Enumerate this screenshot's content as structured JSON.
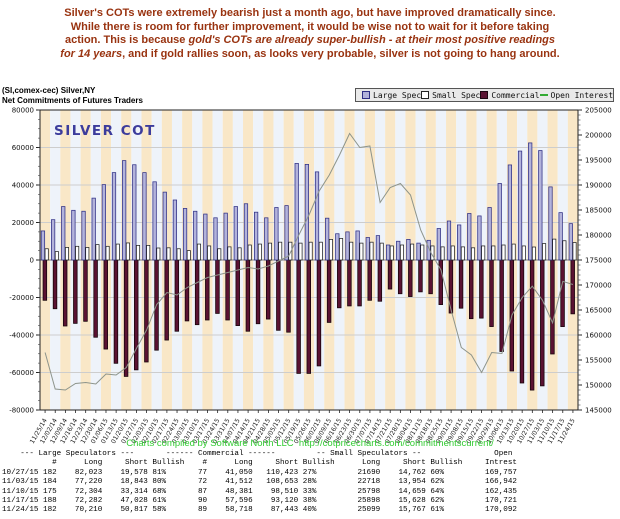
{
  "intro": {
    "color": "#993310",
    "lines": [
      [
        {
          "t": "Silver's COTs were extremely bearish just a month ago, but have improved dramatically since.",
          "i": false
        }
      ],
      [
        {
          "t": "While there is room for further improvement, it would be wise not to wait for it before taking",
          "i": false
        }
      ],
      [
        {
          "t": "action. This is because ",
          "i": false
        },
        {
          "t": "gold's COTs are already super-bullish - at their most positive readings",
          "i": true
        }
      ],
      [
        {
          "t": "for 14 years",
          "i": true
        },
        {
          "t": ", and if gold rallies soon, as looks very probable, silver is not going to hang around.",
          "i": false
        }
      ]
    ]
  },
  "chart_header": {
    "line1": "(SI,comex-cec) Silver,NY",
    "line2": "Net Commitments of Futures Traders"
  },
  "legend": {
    "items": [
      {
        "label": "Large Spec",
        "marker": "square",
        "fill": "#b3b3db",
        "border": "#2f2f85"
      },
      {
        "label": "Small Spec",
        "marker": "square",
        "fill": "#ffffff",
        "border": "#222222"
      },
      {
        "label": "Commercial",
        "marker": "square",
        "fill": "#5a1232",
        "border": "#1a0510"
      },
      {
        "label": "Open Interest",
        "marker": "dash",
        "fill": "#33aa33",
        "border": "#33aa33"
      }
    ]
  },
  "chart_data": {
    "type": "bar",
    "title": "SILVER COT",
    "watermark_color": "#3c3c9c",
    "grid_color": "#cdcdcd",
    "zero_line_color": "#808080",
    "frame_color": "#222222",
    "stripe_even": "#f9e7c7",
    "stripe_odd": "#eef3fa",
    "left_axis": {
      "min": -80000,
      "max": 80000,
      "step": 20000,
      "minor_step": 5000
    },
    "right_axis": {
      "min": 145000,
      "max": 205000,
      "step": 5000,
      "minor_step": 1000
    },
    "x": [
      "11/25/14",
      "12/02/14",
      "12/09/14",
      "12/16/14",
      "12/23/14",
      "12/30/14",
      "01/06/15",
      "01/13/15",
      "01/20/15",
      "01/27/15",
      "02/03/15",
      "02/10/15",
      "02/17/15",
      "02/24/15",
      "03/03/15",
      "03/10/15",
      "03/17/15",
      "03/24/15",
      "03/31/15",
      "04/07/15",
      "04/14/15",
      "04/21/15",
      "04/28/15",
      "05/05/15",
      "05/12/15",
      "05/19/15",
      "05/26/15",
      "06/02/15",
      "06/09/15",
      "06/16/15",
      "06/23/15",
      "06/30/15",
      "07/07/15",
      "07/14/15",
      "07/21/15",
      "07/28/15",
      "08/04/15",
      "08/11/15",
      "08/18/15",
      "08/25/15",
      "09/01/15",
      "09/08/15",
      "09/15/15",
      "09/22/15",
      "09/29/15",
      "10/06/15",
      "10/13/15",
      "10/20/15",
      "10/27/15",
      "11/03/15",
      "11/10/15",
      "11/17/15",
      "11/24/15"
    ],
    "series": [
      {
        "name": "Large Spec",
        "kind": "bar",
        "axis": "left",
        "color": "#b3b3db",
        "border": "#2f2f85",
        "values": [
          15500,
          21500,
          28500,
          26500,
          26000,
          33000,
          40200,
          46600,
          53000,
          50800,
          46600,
          41700,
          36200,
          32000,
          27500,
          26000,
          24500,
          22500,
          25000,
          28500,
          30000,
          25500,
          22500,
          28000,
          29000,
          51500,
          51000,
          47000,
          22300,
          14000,
          15000,
          15500,
          12000,
          13000,
          8000,
          10000,
          11000,
          9000,
          10500,
          16800,
          20800,
          18700,
          24800,
          23500,
          28000,
          40800,
          50700,
          58100,
          62445,
          58377,
          38990,
          25254,
          19393
        ]
      },
      {
        "name": "Small Spec",
        "kind": "bar",
        "axis": "left",
        "color": "#ffffff",
        "border": "#222222",
        "values": [
          6000,
          4500,
          6700,
          7300,
          6700,
          8200,
          7300,
          8500,
          9100,
          7800,
          7800,
          6400,
          6500,
          6000,
          5000,
          8500,
          7500,
          6000,
          7000,
          6500,
          8000,
          8500,
          9000,
          9500,
          9500,
          9000,
          9500,
          9500,
          11000,
          11500,
          9500,
          9000,
          9500,
          9000,
          7500,
          8000,
          8500,
          8000,
          7500,
          7000,
          7500,
          7000,
          6500,
          7500,
          7500,
          8000,
          8500,
          7500,
          6928,
          8764,
          11139,
          10270,
          9332
        ]
      },
      {
        "name": "Commercial",
        "kind": "bar",
        "axis": "left",
        "color": "#5a1232",
        "border": "#140309",
        "values": [
          -21500,
          -26000,
          -35200,
          -33800,
          -32700,
          -41200,
          -47500,
          -55100,
          -62100,
          -58600,
          -54400,
          -48100,
          -42700,
          -38000,
          -32500,
          -34500,
          -32000,
          -28500,
          -32000,
          -35000,
          -38000,
          -34000,
          -31500,
          -37500,
          -38500,
          -60500,
          -60500,
          -56500,
          -33300,
          -25500,
          -24500,
          -24500,
          -21500,
          -22000,
          -15500,
          -18000,
          -19500,
          -17000,
          -18000,
          -23800,
          -28300,
          -25700,
          -31300,
          -31000,
          -35500,
          -48800,
          -59200,
          -65600,
          -69373,
          -67141,
          -50129,
          -35524,
          -28725
        ]
      },
      {
        "name": "Open Interest",
        "kind": "line",
        "axis": "right",
        "color": "#8d948b",
        "values": [
          156500,
          149200,
          149000,
          150300,
          150500,
          150200,
          152200,
          152000,
          153500,
          157300,
          161000,
          166100,
          168500,
          168000,
          169500,
          170500,
          171500,
          172000,
          172500,
          173000,
          173500,
          173200,
          173800,
          174800,
          175800,
          180000,
          184000,
          188800,
          192000,
          196000,
          200300,
          197500,
          197800,
          186500,
          189500,
          190300,
          188000,
          181000,
          176500,
          173000,
          165000,
          157500,
          156000,
          152500,
          156500,
          156300,
          164000,
          167500,
          169757,
          166942,
          162435,
          170721,
          170092
        ]
      }
    ]
  },
  "caption": {
    "text": "Charts compiled by Software North LLC",
    "url": "http://cotpricecharts.com/commitmentscurrent/",
    "color": "#33cc33"
  },
  "table": {
    "group_headers": [
      "--- Large Speculators ---",
      "------ Commercial ------",
      "-- Small Speculators --",
      "Open"
    ],
    "col_headers": [
      "#",
      "Long",
      "Short",
      "Bullish",
      "#",
      "Long",
      "Short",
      "Bullish",
      "Long",
      "Short",
      "Bullish",
      "Intrest"
    ],
    "rows": [
      {
        "date": "10/27/15",
        "ls": [
          "182",
          "82,023",
          "19,578",
          "81%"
        ],
        "c": [
          "77",
          "41,050",
          "110,423",
          "27%"
        ],
        "ss": [
          "21690",
          "14,762",
          "60%"
        ],
        "oi": "169,757"
      },
      {
        "date": "11/03/15",
        "ls": [
          "184",
          "77,220",
          "18,843",
          "80%"
        ],
        "c": [
          "72",
          "41,512",
          "108,653",
          "28%"
        ],
        "ss": [
          "22718",
          "13,954",
          "62%"
        ],
        "oi": "166,942"
      },
      {
        "date": "11/10/15",
        "ls": [
          "175",
          "72,304",
          "33,314",
          "68%"
        ],
        "c": [
          "87",
          "48,381",
          "98,510",
          "33%"
        ],
        "ss": [
          "25798",
          "14,659",
          "64%"
        ],
        "oi": "162,435"
      },
      {
        "date": "11/17/15",
        "ls": [
          "188",
          "72,282",
          "47,028",
          "61%"
        ],
        "c": [
          "90",
          "57,596",
          "93,120",
          "38%"
        ],
        "ss": [
          "25898",
          "15,628",
          "62%"
        ],
        "oi": "170,721"
      },
      {
        "date": "11/24/15",
        "ls": [
          "182",
          "70,210",
          "50,817",
          "58%"
        ],
        "c": [
          "89",
          "58,718",
          "87,443",
          "40%"
        ],
        "ss": [
          "25099",
          "15,767",
          "61%"
        ],
        "oi": "170,092"
      }
    ]
  }
}
